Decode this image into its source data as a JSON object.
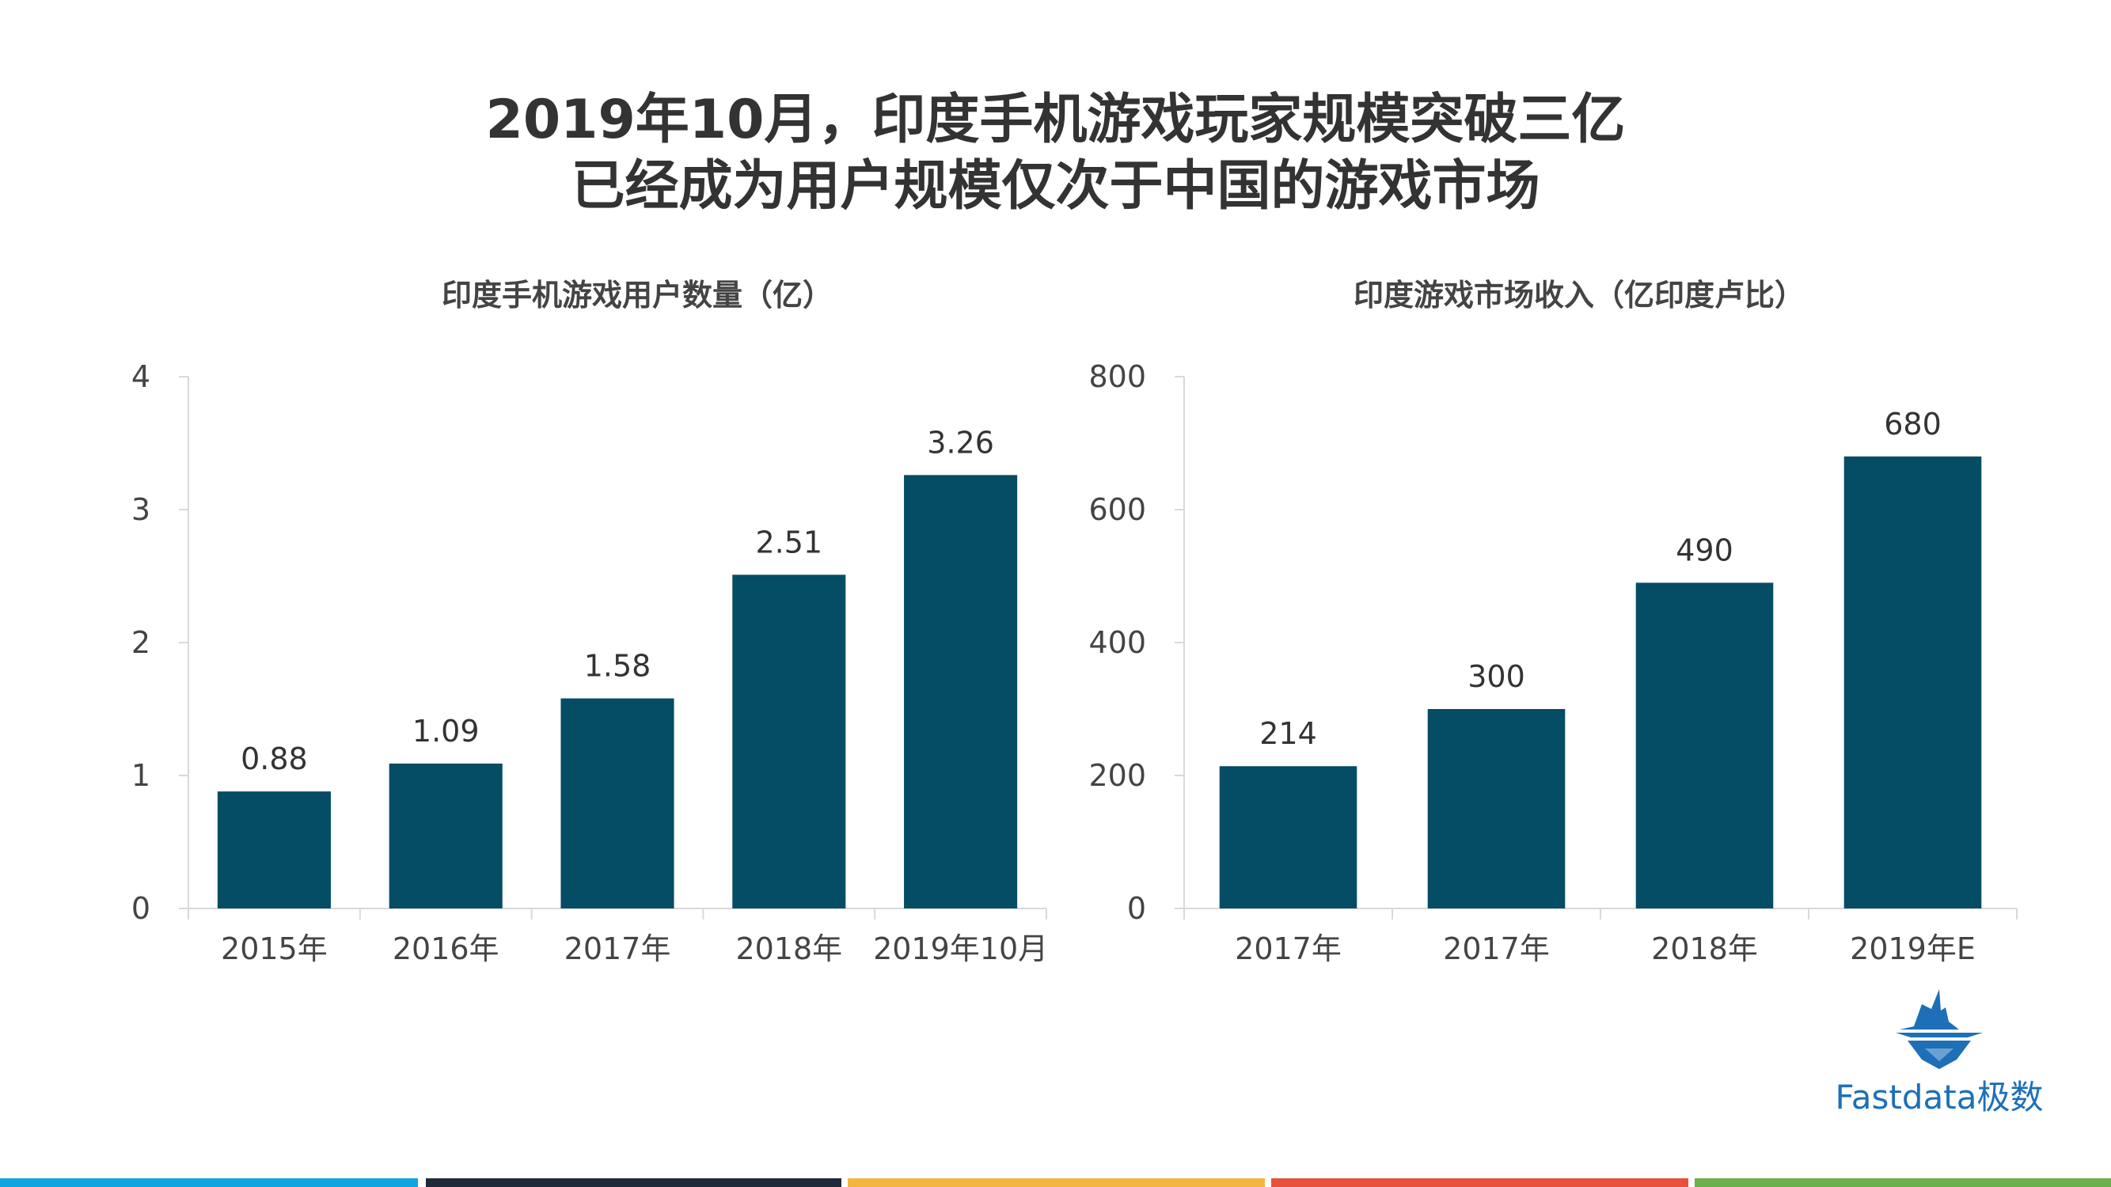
{
  "page": {
    "title_line1": "2019年10月，印度手机游戏玩家规模突破三亿",
    "title_line2": "已经成为用户规模仅次于中国的游戏市场"
  },
  "chart_data": [
    {
      "type": "bar",
      "title": "印度手机游戏用户数量（亿）",
      "categories": [
        "2015年",
        "2016年",
        "2017年",
        "2018年",
        "2019年10月"
      ],
      "values": [
        0.88,
        1.09,
        1.58,
        2.51,
        3.26
      ],
      "data_labels": [
        "0.88",
        "1.09",
        "1.58",
        "2.51",
        "3.26"
      ],
      "yticks": [
        "0",
        "1",
        "2",
        "3",
        "4"
      ],
      "ylim": [
        0,
        4
      ],
      "xlabel": "",
      "ylabel": "",
      "grid": false,
      "legend": "none",
      "color": "#044d64"
    },
    {
      "type": "bar",
      "title": "印度游戏市场收入（亿印度卢比）",
      "categories": [
        "2017年",
        "2017年",
        "2018年",
        "2019年E"
      ],
      "values": [
        214,
        300,
        490,
        680
      ],
      "data_labels": [
        "214",
        "300",
        "490",
        "680"
      ],
      "yticks": [
        "0",
        "200",
        "400",
        "600",
        "800"
      ],
      "ylim": [
        0,
        800
      ],
      "xlabel": "",
      "ylabel": "",
      "grid": false,
      "legend": "none",
      "color": "#044d64"
    }
  ],
  "logo": {
    "text": "Fastdata极数",
    "icon": "iceberg-icon",
    "color": "#1d6fb8"
  },
  "footer": {
    "colors": [
      "#0ea5e0",
      "#1e2a3a",
      "#f2b640",
      "#e8513c",
      "#6ab04c"
    ]
  }
}
